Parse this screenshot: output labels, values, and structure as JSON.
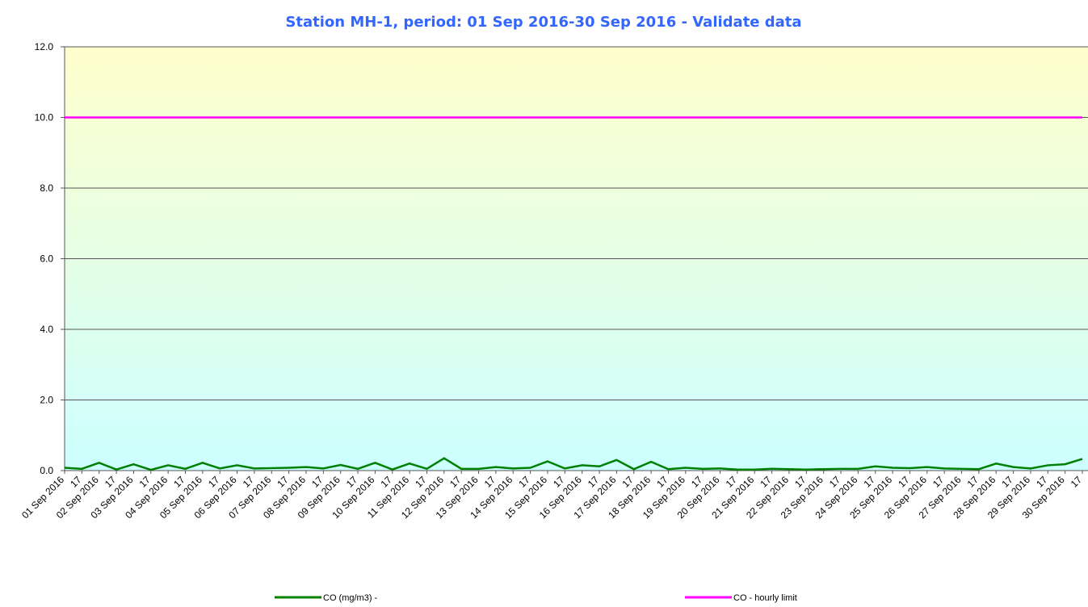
{
  "chart_data": {
    "type": "line",
    "title": "Station MH-1, period: 01 Sep 2016-30 Sep 2016 - Validate data",
    "categories": [
      "01 Sep 2016",
      "17",
      "02 Sep 2016",
      "17",
      "03 Sep 2016",
      "17",
      "04 Sep 2016",
      "17",
      "05 Sep 2016",
      "17",
      "06 Sep 2016",
      "17",
      "07 Sep 2016",
      "17",
      "08 Sep 2016",
      "17",
      "09 Sep 2016",
      "17",
      "10 Sep 2016",
      "17",
      "11 Sep 2016",
      "17",
      "12 Sep 2016",
      "17",
      "13 Sep 2016",
      "17",
      "14 Sep 2016",
      "17",
      "15 Sep 2016",
      "17",
      "16 Sep 2016",
      "17",
      "17 Sep 2016",
      "17",
      "18 Sep 2016",
      "17",
      "19 Sep 2016",
      "17",
      "20 Sep 2016",
      "17",
      "21 Sep 2016",
      "17",
      "22 Sep 2016",
      "17",
      "23 Sep 2016",
      "17",
      "24 Sep 2016",
      "17",
      "25 Sep 2016",
      "17",
      "26 Sep 2016",
      "17",
      "27 Sep 2016",
      "17",
      "28 Sep 2016",
      "17",
      "29 Sep 2016",
      "17",
      "30 Sep 2016",
      "17"
    ],
    "series": [
      {
        "name": "CO (mg/m3) -",
        "color": "#008000",
        "values": [
          0.08,
          0.05,
          0.22,
          0.03,
          0.18,
          0.02,
          0.15,
          0.05,
          0.22,
          0.06,
          0.15,
          0.06,
          0.07,
          0.08,
          0.1,
          0.06,
          0.16,
          0.05,
          0.22,
          0.03,
          0.2,
          0.05,
          0.35,
          0.05,
          0.05,
          0.1,
          0.06,
          0.08,
          0.26,
          0.06,
          0.15,
          0.12,
          0.3,
          0.04,
          0.25,
          0.04,
          0.08,
          0.05,
          0.06,
          0.03,
          0.03,
          0.05,
          0.04,
          0.03,
          0.04,
          0.05,
          0.05,
          0.12,
          0.08,
          0.07,
          0.1,
          0.06,
          0.05,
          0.04,
          0.2,
          0.1,
          0.06,
          0.15,
          0.18,
          0.33
        ]
      },
      {
        "name": "CO - hourly limit",
        "color": "#ff00ff",
        "values": [
          10,
          10,
          10,
          10,
          10,
          10,
          10,
          10,
          10,
          10,
          10,
          10,
          10,
          10,
          10,
          10,
          10,
          10,
          10,
          10,
          10,
          10,
          10,
          10,
          10,
          10,
          10,
          10,
          10,
          10,
          10,
          10,
          10,
          10,
          10,
          10,
          10,
          10,
          10,
          10,
          10,
          10,
          10,
          10,
          10,
          10,
          10,
          10,
          10,
          10,
          10,
          10,
          10,
          10,
          10,
          10,
          10,
          10,
          10,
          10
        ]
      }
    ],
    "ylim": [
      0,
      12
    ],
    "yticks": [
      {
        "value": 0,
        "label": "0.0"
      },
      {
        "value": 2,
        "label": "2.0"
      },
      {
        "value": 4,
        "label": "4.0"
      },
      {
        "value": 6,
        "label": "6.0"
      },
      {
        "value": 8,
        "label": "8.0"
      },
      {
        "value": 10,
        "label": "10.0"
      },
      {
        "value": 12,
        "label": "12.0"
      }
    ],
    "grid": true
  }
}
